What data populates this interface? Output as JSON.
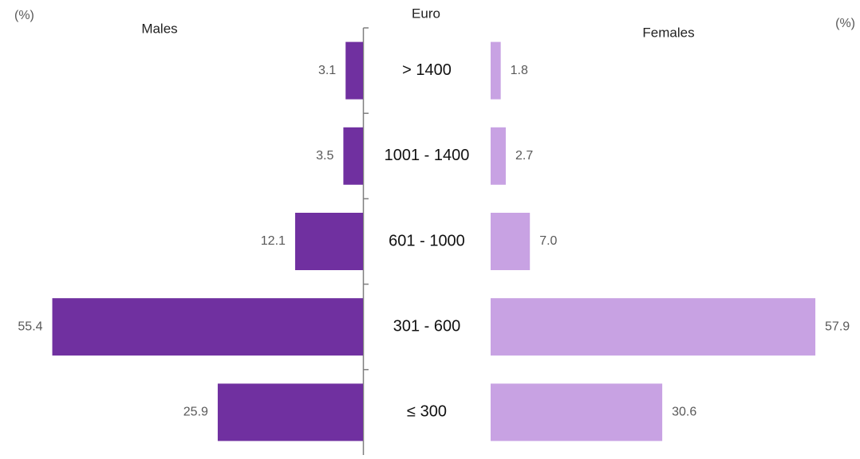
{
  "chart_data": {
    "type": "butterfly-bar",
    "left_unit": "(%)",
    "right_unit": "(%)",
    "category_axis_label": "Euro",
    "categories": [
      "> 1400",
      "1001 - 1400",
      "601 - 1000",
      "301 - 600",
      "≤ 300"
    ],
    "series": [
      {
        "name": "Males",
        "color": "#7030a0",
        "side": "left",
        "values": [
          3.1,
          3.5,
          12.1,
          55.4,
          25.9
        ]
      },
      {
        "name": "Females",
        "color": "#c8a2e3",
        "side": "right",
        "values": [
          1.8,
          2.7,
          7.0,
          57.9,
          30.6
        ],
        "value_labels": [
          "1.8",
          "2.7",
          "7.0",
          "57.9",
          "30.6"
        ]
      }
    ]
  }
}
